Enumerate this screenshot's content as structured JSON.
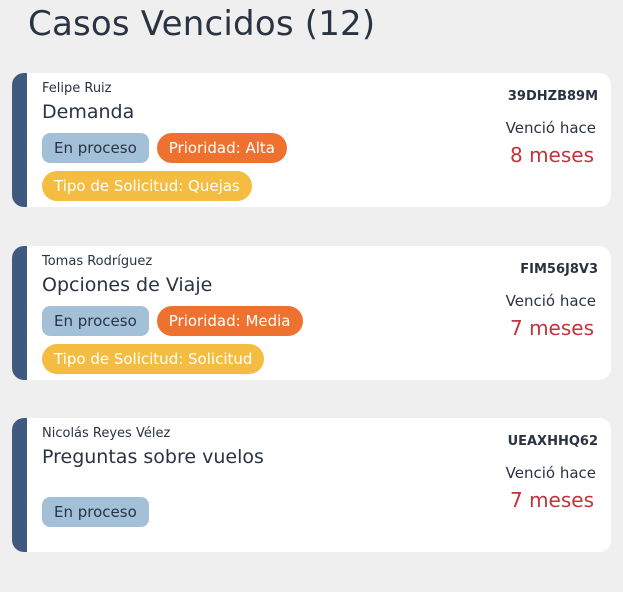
{
  "header": {
    "title": "Casos Vencidos (12)"
  },
  "colors": {
    "accent_bar": "#3f5a7e",
    "status": "#a2c1d9",
    "priority": "#ef7130",
    "type": "#f4bd41",
    "overdue": "#c0343a"
  },
  "cases": [
    {
      "name": "Felipe Ruiz",
      "subject": "Demanda",
      "status": "En proceso",
      "priority": "Prioridad: Alta",
      "type": "Tipo de Solicitud: Quejas",
      "code": "39DHZB89M",
      "overdue_label": "Venció hace",
      "overdue_value": "8 meses"
    },
    {
      "name": "Tomas Rodríguez",
      "subject": "Opciones de Viaje",
      "status": "En proceso",
      "priority": "Prioridad: Media",
      "type": "Tipo de Solicitud: Solicitud",
      "code": "FIM56J8V3",
      "overdue_label": "Venció hace",
      "overdue_value": "7 meses"
    },
    {
      "name": "Nicolás Reyes Vélez",
      "subject": "Preguntas sobre vuelos",
      "status": "En proceso",
      "code": "UEAXHHQ62",
      "overdue_label": "Venció hace",
      "overdue_value": "7 meses"
    }
  ]
}
